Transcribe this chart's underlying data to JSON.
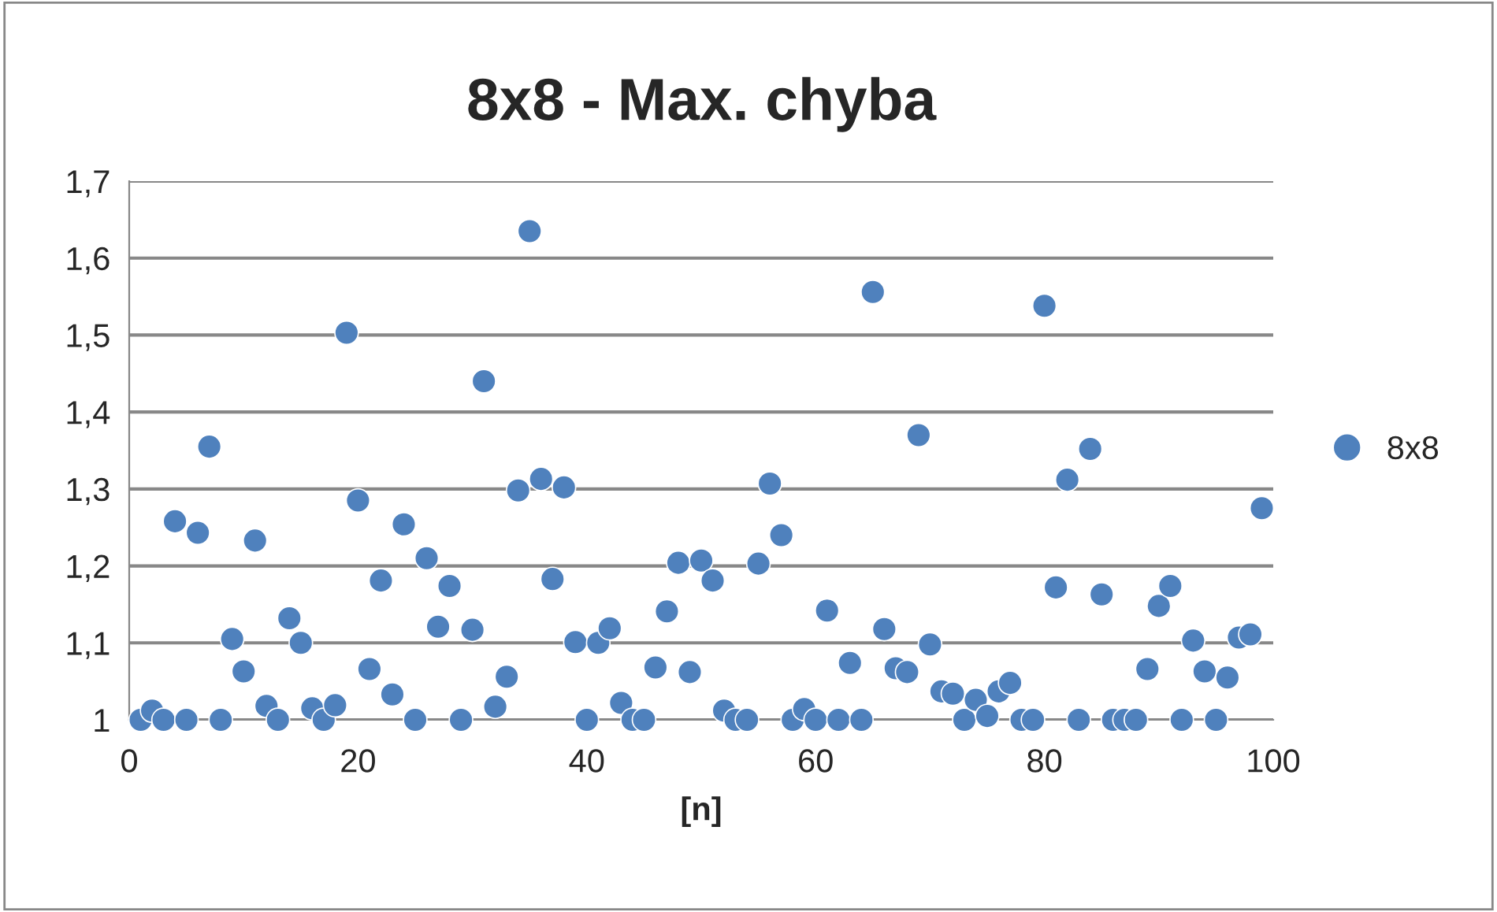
{
  "chart_data": {
    "type": "scatter",
    "title": "8x8 - Max. chyba",
    "xlabel": "[n]",
    "x": [
      1,
      2,
      3,
      4,
      5,
      6,
      7,
      8,
      9,
      10,
      11,
      12,
      13,
      14,
      15,
      16,
      17,
      18,
      19,
      20,
      21,
      22,
      23,
      24,
      25,
      26,
      27,
      28,
      29,
      30,
      31,
      32,
      33,
      34,
      35,
      36,
      37,
      38,
      39,
      40,
      41,
      42,
      43,
      44,
      45,
      46,
      47,
      48,
      49,
      50,
      51,
      52,
      53,
      54,
      55,
      56,
      57,
      58,
      59,
      60,
      61,
      62,
      63,
      64,
      65,
      66,
      67,
      68,
      69,
      70,
      71,
      72,
      73,
      74,
      75,
      76,
      77,
      78,
      79,
      80,
      81,
      82,
      83,
      84,
      85,
      86,
      87,
      88,
      89,
      90,
      91,
      92,
      93,
      94,
      95,
      96,
      97,
      98,
      99
    ],
    "series": [
      {
        "name": "8x8",
        "color": "#4f81bd",
        "values": [
          1.0,
          1.012,
          1.0,
          1.258,
          1.0,
          1.243,
          1.355,
          1.0,
          1.105,
          1.063,
          1.233,
          1.018,
          1.0,
          1.132,
          1.1,
          1.015,
          1.0,
          1.019,
          1.503,
          1.285,
          1.066,
          1.181,
          1.033,
          1.254,
          1.0,
          1.21,
          1.121,
          1.174,
          1.0,
          1.117,
          1.44,
          1.017,
          1.056,
          1.298,
          1.635,
          1.313,
          1.183,
          1.302,
          1.101,
          1.0,
          1.1,
          1.119,
          1.022,
          1.0,
          1.0,
          1.068,
          1.141,
          1.204,
          1.062,
          1.207,
          1.181,
          1.012,
          1.0,
          1.0,
          1.203,
          1.307,
          1.24,
          1.0,
          1.014,
          1.0,
          1.142,
          1.0,
          1.074,
          1.0,
          1.556,
          1.118,
          1.067,
          1.062,
          1.37,
          1.098,
          1.037,
          1.034,
          1.0,
          1.026,
          1.005,
          1.037,
          1.048,
          1.0,
          1.0,
          1.538,
          1.172,
          1.312,
          1.0,
          1.352,
          1.163,
          1.0,
          1.0,
          1.0,
          1.066,
          1.148,
          1.174,
          1.0,
          1.103,
          1.063,
          1.0,
          1.055,
          1.107,
          1.111,
          1.275
        ]
      }
    ],
    "xlim": [
      0,
      100
    ],
    "xticks": [
      0,
      20,
      40,
      60,
      80,
      100
    ],
    "ylim": [
      1,
      1.7
    ],
    "yticks": [
      {
        "value": 1,
        "label": "1"
      },
      {
        "value": 1.1,
        "label": "1,1"
      },
      {
        "value": 1.2,
        "label": "1,2"
      },
      {
        "value": 1.3,
        "label": "1,3"
      },
      {
        "value": 1.4,
        "label": "1,4"
      },
      {
        "value": 1.5,
        "label": "1,5"
      },
      {
        "value": 1.6,
        "label": "1,6"
      },
      {
        "value": 1.7,
        "label": "1,7"
      }
    ],
    "grid": "y",
    "legend": "right",
    "marker": "circle"
  }
}
